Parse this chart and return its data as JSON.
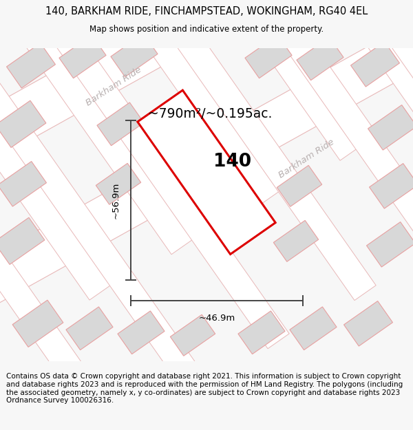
{
  "title_line1": "140, BARKHAM RIDE, FINCHAMPSTEAD, WOKINGHAM, RG40 4EL",
  "title_line2": "Map shows position and indicative extent of the property.",
  "footer_text": "Contains OS data © Crown copyright and database right 2021. This information is subject to Crown copyright and database rights 2023 and is reproduced with the permission of HM Land Registry. The polygons (including the associated geometry, namely x, y co-ordinates) are subject to Crown copyright and database rights 2023 Ordnance Survey 100026316.",
  "area_label": "~790m²/~0.195ac.",
  "width_label": "~46.9m",
  "height_label": "~56.9m",
  "number_label": "140",
  "bg_color": "#f7f7f7",
  "map_bg": "#f0efef",
  "road_fill": "#ffffff",
  "road_stroke": "#e8b8b8",
  "building_fill": "#d8d8d8",
  "building_stroke": "#e8a0a0",
  "plot_stroke": "#dd0000",
  "plot_fill": "#ffffff",
  "street_label_color": "#b8b0b0",
  "dim_color": "#444444",
  "title_fontsize": 10.5,
  "footer_fontsize": 7.5
}
